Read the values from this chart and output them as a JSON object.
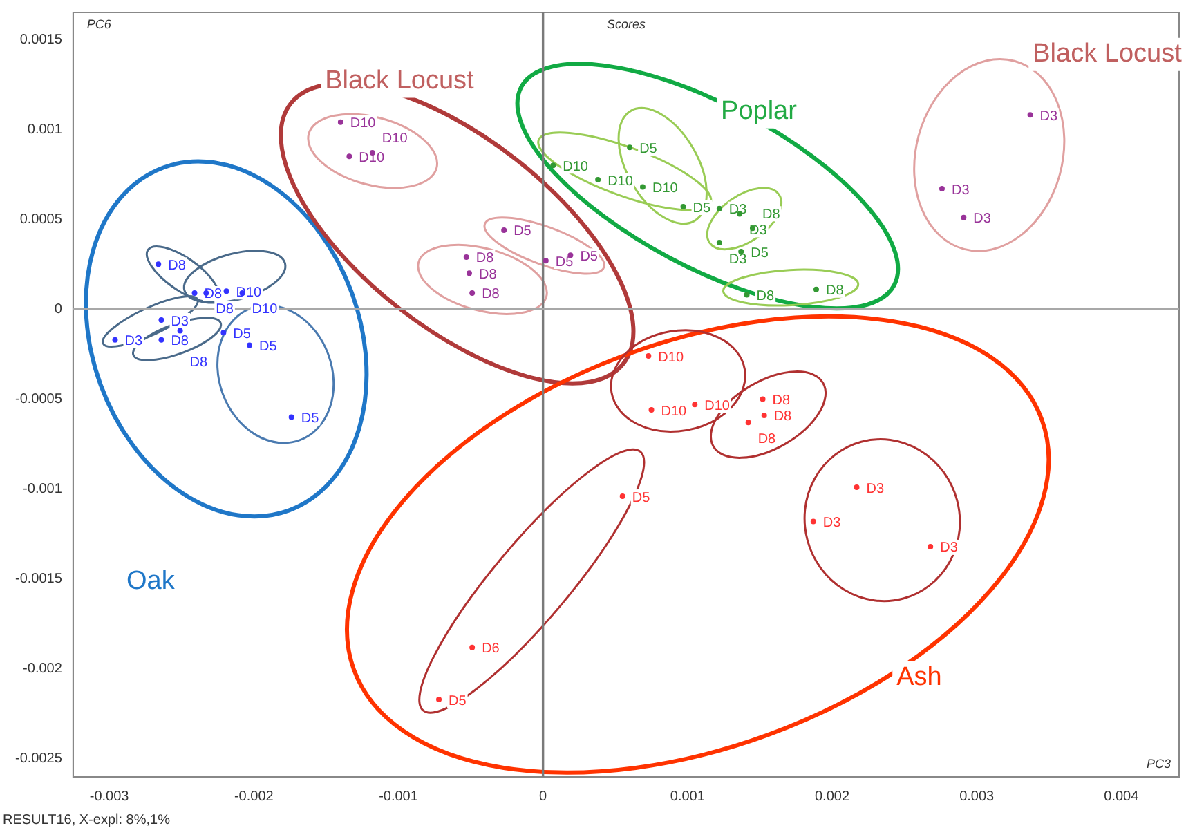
{
  "chart_data": {
    "type": "scatter",
    "title": "Scores",
    "xlabel": "PC3",
    "ylabel": "PC6",
    "annotations": [
      "Oak",
      "Black Locust",
      "Black Locust",
      "Poplar",
      "Ash",
      "RESULT16, X-expl: 8%,1%"
    ],
    "xlim": [
      -0.00325,
      0.0044
    ],
    "ylim": [
      -0.0026,
      0.00165
    ],
    "xticks": [
      -0.003,
      -0.002,
      -0.001,
      0,
      0.001,
      0.002,
      0.003,
      0.004
    ],
    "yticks": [
      -0.0025,
      -0.002,
      -0.0015,
      -0.001,
      -0.0005,
      0,
      0.0005,
      0.001,
      0.0015
    ],
    "grid": false,
    "legend": false,
    "marker": "circle",
    "ref_lines": [
      {
        "axis": "x",
        "value": 0,
        "color": "#7a7a7a"
      },
      {
        "axis": "y",
        "value": 0,
        "color": "#a8a8a8"
      }
    ],
    "series": [
      {
        "color": "#3333ff",
        "x": [
          -0.00266,
          -0.00241,
          -0.00233,
          -0.00219,
          -0.00208,
          -0.00264,
          -0.00296,
          -0.00264,
          -0.00251,
          -0.00221,
          -0.00203,
          -0.00174
        ],
        "values": [
          0.00025,
          9e-05,
          9e-05,
          0.0001,
          9e-05,
          -6e-05,
          -0.00017,
          -0.00017,
          -0.00012,
          -0.00013,
          -0.0002,
          -0.0006
        ],
        "value_labels": [
          "D8",
          "D8",
          "D8",
          "D10",
          "D10",
          "D3",
          "D3",
          "D8",
          "D8",
          "D5",
          "D5",
          "D5"
        ]
      },
      {
        "color": "#993399",
        "x": [
          -0.0014,
          -0.00134,
          -0.00118,
          -0.00027,
          2e-05,
          0.00019,
          -0.00053,
          -0.00051,
          -0.00049,
          0.00337,
          0.00276,
          0.00291
        ],
        "values": [
          0.00104,
          0.00085,
          0.00087,
          0.00044,
          0.00027,
          0.0003,
          0.00029,
          0.0002,
          9e-05,
          0.00108,
          0.00067,
          0.00051
        ],
        "value_labels": [
          "D10",
          "D10",
          "D10",
          "D5",
          "D5",
          "D5",
          "D8",
          "D8",
          "D8",
          "D3",
          "D3",
          "D3"
        ]
      },
      {
        "color": "#339933",
        "x": [
          7e-05,
          0.00038,
          0.00069,
          0.0006,
          0.00097,
          0.00122,
          0.00136,
          0.00145,
          0.00122,
          0.00137,
          0.00141,
          0.00189
        ],
        "values": [
          0.0008,
          0.00072,
          0.00068,
          0.0009,
          0.00057,
          0.00056,
          0.00053,
          0.00045,
          0.00037,
          0.00032,
          8e-05,
          0.00011
        ],
        "value_labels": [
          "D10",
          "D10",
          "D10",
          "D5",
          "D5",
          "D3",
          "D3",
          "D8",
          "D3",
          "D5",
          "D8",
          "D8"
        ]
      },
      {
        "color": "#ff3333",
        "x": [
          0.00073,
          0.00075,
          0.00105,
          0.00152,
          0.00153,
          0.00142,
          0.00055,
          0.00217,
          0.00187,
          0.00268,
          -0.00049,
          -0.00072
        ],
        "values": [
          -0.00026,
          -0.00056,
          -0.00053,
          -0.0005,
          -0.00059,
          -0.00063,
          -0.00104,
          -0.00099,
          -0.00118,
          -0.00132,
          -0.00188,
          -0.00217
        ],
        "value_labels": [
          "D10",
          "D10",
          "D10",
          "D8",
          "D8",
          "D8",
          "D5",
          "D3",
          "D3",
          "D3",
          "D6",
          "D5"
        ]
      }
    ]
  }
}
